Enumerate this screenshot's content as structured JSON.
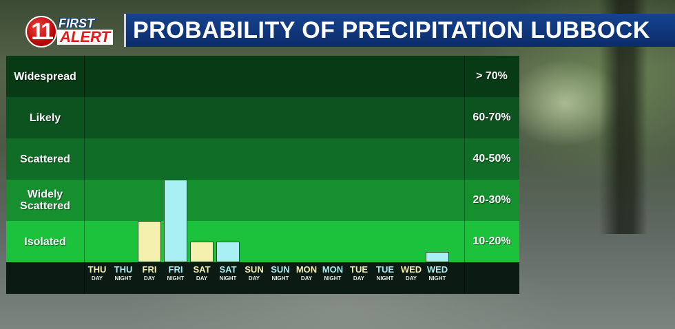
{
  "logo": {
    "number": "11",
    "word1": "FIRST",
    "word2": "ALERT"
  },
  "title": "PROBABILITY OF PRECIPITATION LUBBOCK",
  "colors": {
    "band_colors": [
      "#083a16",
      "#0d5320",
      "#106d28",
      "#16902f",
      "#1cc23b"
    ],
    "day_bar": "#f4f0ad",
    "night_bar": "#a9f0f4",
    "day_text": "#f4efae",
    "night_text": "#a9eef4"
  },
  "chart_data": {
    "type": "bar",
    "bands": [
      {
        "label": "Widespread",
        "range": "> 70%"
      },
      {
        "label": "Likely",
        "range": "60-70%"
      },
      {
        "label": "Scattered",
        "range": "40-50%"
      },
      {
        "label": "Widely Scattered",
        "range": "20-30%"
      },
      {
        "label": "Isolated",
        "range": "10-20%"
      }
    ],
    "categories": [
      {
        "day": "THU",
        "period": "DAY"
      },
      {
        "day": "THU",
        "period": "NIGHT"
      },
      {
        "day": "FRI",
        "period": "DAY"
      },
      {
        "day": "FRI",
        "period": "NIGHT"
      },
      {
        "day": "SAT",
        "period": "DAY"
      },
      {
        "day": "SAT",
        "period": "NIGHT"
      },
      {
        "day": "SUN",
        "period": "DAY"
      },
      {
        "day": "SUN",
        "period": "NIGHT"
      },
      {
        "day": "MON",
        "period": "DAY"
      },
      {
        "day": "MON",
        "period": "NIGHT"
      },
      {
        "day": "TUE",
        "period": "DAY"
      },
      {
        "day": "TUE",
        "period": "NIGHT"
      },
      {
        "day": "WED",
        "period": "DAY"
      },
      {
        "day": "WED",
        "period": "NIGHT"
      }
    ],
    "values_in_bands": [
      0,
      0,
      1,
      2,
      0.5,
      0.5,
      0,
      0,
      0,
      0,
      0,
      0,
      0,
      0.25
    ],
    "ylim_bands": [
      0,
      5
    ]
  }
}
